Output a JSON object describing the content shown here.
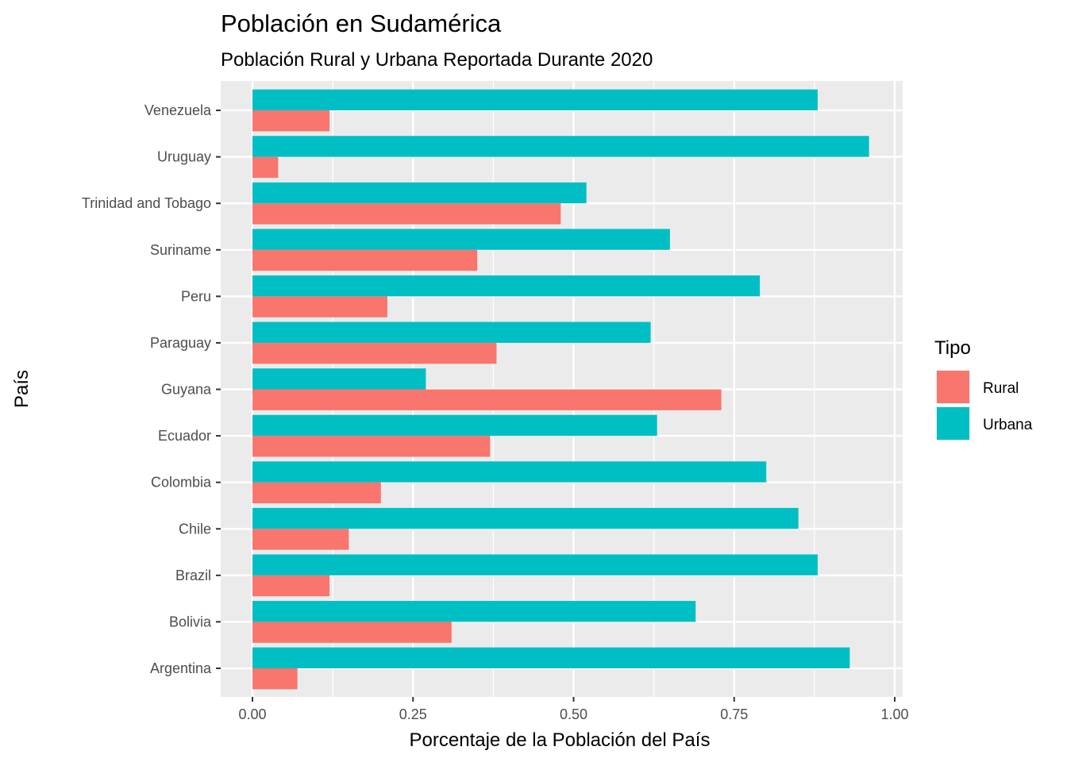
{
  "chart_data": {
    "type": "bar",
    "orientation": "horizontal",
    "title": "Población en Sudamérica",
    "subtitle": "Población Rural y Urbana Reportada Durante 2020",
    "xlabel": "Porcentaje de la Población del País",
    "ylabel": "País",
    "xlim": [
      0,
      1
    ],
    "xticks": [
      "0.00",
      "0.25",
      "0.50",
      "0.75",
      "1.00"
    ],
    "grid": true,
    "legend": {
      "title": "Tipo",
      "placement": "right"
    },
    "categories": [
      "Argentina",
      "Bolivia",
      "Brazil",
      "Chile",
      "Colombia",
      "Ecuador",
      "Guyana",
      "Paraguay",
      "Peru",
      "Suriname",
      "Trinidad and Tobago",
      "Uruguay",
      "Venezuela"
    ],
    "series": [
      {
        "name": "Rural",
        "color": "#F8766D",
        "values": [
          0.07,
          0.31,
          0.12,
          0.15,
          0.2,
          0.37,
          0.73,
          0.38,
          0.21,
          0.35,
          0.48,
          0.04,
          0.12
        ]
      },
      {
        "name": "Urbana",
        "color": "#00BFC4",
        "values": [
          0.93,
          0.69,
          0.88,
          0.85,
          0.8,
          0.63,
          0.27,
          0.62,
          0.79,
          0.65,
          0.52,
          0.96,
          0.88
        ]
      }
    ]
  }
}
